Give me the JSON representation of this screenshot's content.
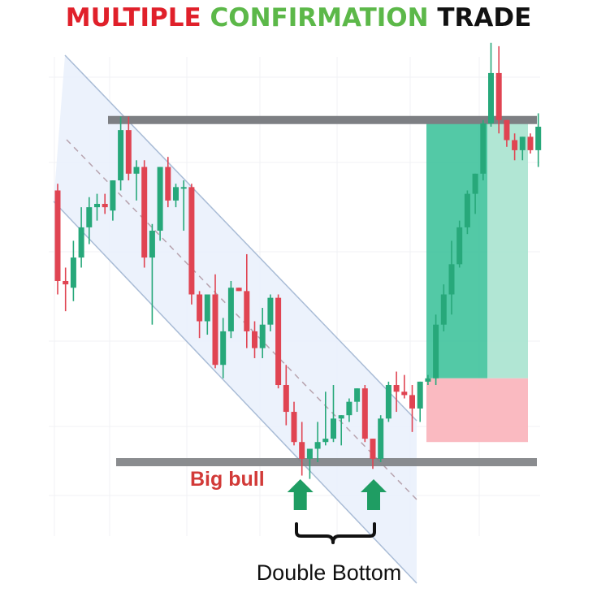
{
  "title": {
    "part1": "MULTIPLE",
    "part2": "CONFIRMATION",
    "part3": "TRADE",
    "colors": {
      "part1": "#e0202a",
      "part2": "#5cb849",
      "part3": "#111111"
    }
  },
  "annotations": {
    "big_bull": "Big bull",
    "double_bottom": "Double Bottom"
  },
  "colors": {
    "bull": "#27a87a",
    "bear": "#e04452",
    "channel_fill": "#e9f0fb",
    "channel_line": "#a9bcd6",
    "level_line": "#7d7f83",
    "profit_zone": "#35bf96",
    "profit_zone_light": "#a8e3cf",
    "loss_zone": "#f9b3ba",
    "arrow": "#1f9d63",
    "big_bull_text": "#d23a38"
  },
  "chart_data": {
    "type": "candlestick",
    "title": "",
    "price_range": [
      10,
      105
    ],
    "candles": [
      {
        "o": 75,
        "h": 77,
        "l": 44,
        "c": 48
      },
      {
        "o": 48,
        "h": 52,
        "l": 39,
        "c": 47
      },
      {
        "o": 46,
        "h": 60,
        "l": 42,
        "c": 55
      },
      {
        "o": 55,
        "h": 70,
        "l": 52,
        "c": 64
      },
      {
        "o": 64,
        "h": 73,
        "l": 59,
        "c": 70
      },
      {
        "o": 70,
        "h": 74,
        "l": 66,
        "c": 71
      },
      {
        "o": 71,
        "h": 74,
        "l": 68,
        "c": 70
      },
      {
        "o": 69,
        "h": 78,
        "l": 66,
        "c": 78
      },
      {
        "o": 78,
        "h": 97,
        "l": 75,
        "c": 93
      },
      {
        "o": 93,
        "h": 97,
        "l": 78,
        "c": 80
      },
      {
        "o": 80,
        "h": 84,
        "l": 72,
        "c": 82
      },
      {
        "o": 82,
        "h": 84,
        "l": 52,
        "c": 55
      },
      {
        "o": 55,
        "h": 65,
        "l": 35,
        "c": 63
      },
      {
        "o": 63,
        "h": 82,
        "l": 60,
        "c": 82
      },
      {
        "o": 82,
        "h": 85,
        "l": 70,
        "c": 72
      },
      {
        "o": 72,
        "h": 77,
        "l": 70,
        "c": 76
      },
      {
        "o": 76,
        "h": 78,
        "l": 63,
        "c": 76
      },
      {
        "o": 76,
        "h": 77,
        "l": 41,
        "c": 44
      },
      {
        "o": 44,
        "h": 45,
        "l": 31,
        "c": 36
      },
      {
        "o": 36,
        "h": 44,
        "l": 32,
        "c": 44
      },
      {
        "o": 44,
        "h": 50,
        "l": 22,
        "c": 23
      },
      {
        "o": 23,
        "h": 37,
        "l": 19,
        "c": 33
      },
      {
        "o": 33,
        "h": 48,
        "l": 31,
        "c": 46
      },
      {
        "o": 46,
        "h": 46,
        "l": 45,
        "c": 45
      },
      {
        "o": 45,
        "h": 56,
        "l": 28,
        "c": 33
      },
      {
        "o": 33,
        "h": 36,
        "l": 25,
        "c": 28
      },
      {
        "o": 28,
        "h": 40,
        "l": 25,
        "c": 35
      },
      {
        "o": 35,
        "h": 44,
        "l": 33,
        "c": 43
      },
      {
        "o": 43,
        "h": 44,
        "l": 16,
        "c": 17
      },
      {
        "o": 17,
        "h": 23,
        "l": 5,
        "c": 9
      },
      {
        "o": 9,
        "h": 12,
        "l": -1,
        "c": 0
      },
      {
        "o": 0,
        "h": 6,
        "l": -10,
        "c": -5
      },
      {
        "o": -5,
        "h": -2,
        "l": -11,
        "c": -2
      },
      {
        "o": -2,
        "h": 6,
        "l": -6,
        "c": 0
      },
      {
        "o": 0,
        "h": 15,
        "l": -1,
        "c": 1
      },
      {
        "o": 1,
        "h": 17,
        "l": 0,
        "c": 7
      },
      {
        "o": 7,
        "h": 8,
        "l": -1,
        "c": 8
      },
      {
        "o": 8,
        "h": 13,
        "l": 6,
        "c": 12
      },
      {
        "o": 12,
        "h": 16,
        "l": 9,
        "c": 16
      },
      {
        "o": 16,
        "h": 17,
        "l": 0,
        "c": 1
      },
      {
        "o": 1,
        "h": 1,
        "l": -8,
        "c": -5
      },
      {
        "o": -5,
        "h": 8,
        "l": -6,
        "c": 7
      },
      {
        "o": 7,
        "h": 18,
        "l": 6,
        "c": 17
      },
      {
        "o": 17,
        "h": 21,
        "l": 9,
        "c": 15
      },
      {
        "o": 15,
        "h": 20,
        "l": 13,
        "c": 14
      },
      {
        "o": 14,
        "h": 17,
        "l": 3,
        "c": 10
      },
      {
        "o": 10,
        "h": 18,
        "l": 6,
        "c": 18
      },
      {
        "o": 18,
        "h": 20,
        "l": 17,
        "c": 19
      },
      {
        "o": 19,
        "h": 38,
        "l": 17,
        "c": 35
      },
      {
        "o": 35,
        "h": 47,
        "l": 33,
        "c": 44
      },
      {
        "o": 44,
        "h": 60,
        "l": 38,
        "c": 53
      },
      {
        "o": 53,
        "h": 66,
        "l": 52,
        "c": 64
      },
      {
        "o": 64,
        "h": 75,
        "l": 62,
        "c": 74
      },
      {
        "o": 74,
        "h": 80,
        "l": 68,
        "c": 80
      },
      {
        "o": 80,
        "h": 96,
        "l": 78,
        "c": 95
      },
      {
        "o": 95,
        "h": 119,
        "l": 94,
        "c": 110
      },
      {
        "o": 110,
        "h": 118,
        "l": 92,
        "c": 96
      },
      {
        "o": 96,
        "h": 96,
        "l": 88,
        "c": 90
      },
      {
        "o": 90,
        "h": 92,
        "l": 84,
        "c": 87
      },
      {
        "o": 87,
        "h": 91,
        "l": 84,
        "c": 91
      },
      {
        "o": 91,
        "h": 92,
        "l": 86,
        "c": 87
      },
      {
        "o": 87,
        "h": 98,
        "l": 82,
        "c": 94
      }
    ],
    "resistance_level": 96,
    "support_level": -6,
    "double_bottom_candles": [
      31,
      40
    ],
    "setup": {
      "entry": 19,
      "take_profit": 96,
      "stop_loss": 0
    }
  }
}
